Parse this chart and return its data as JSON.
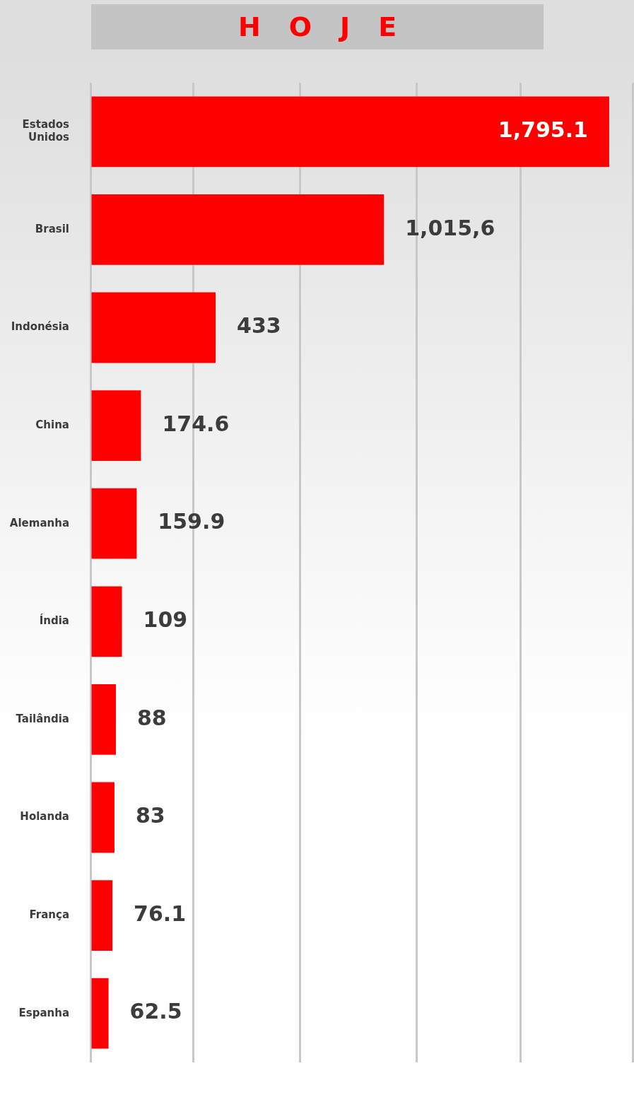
{
  "chart_data": {
    "type": "bar",
    "title": "HOJE",
    "orientation": "horizontal",
    "categories": [
      "Estados Unidos",
      "Brasil",
      "Indonésia",
      "China",
      "Alemanha",
      "Índia",
      "Tailândia",
      "Holanda",
      "França",
      "Espanha"
    ],
    "values": [
      1795.1,
      1015.6,
      433,
      174.6,
      159.9,
      109,
      88,
      83,
      76.1,
      62.5
    ],
    "value_labels": [
      "1,795.1",
      "1,015,6",
      "433",
      "174.6",
      "159.9",
      "109",
      "88",
      "83",
      "76.1",
      "62.5"
    ],
    "color": "#ff0000",
    "xlim": [
      0,
      1876
    ],
    "xticks": [
      {
        "value": 0,
        "label": null
      },
      {
        "value": 355,
        "label": null
      },
      {
        "value": 724,
        "label": null
      },
      {
        "value": 1130,
        "label": null
      },
      {
        "value": 1489,
        "label": null
      },
      {
        "value": 1876,
        "label": null
      }
    ],
    "grid": "x",
    "tick_labels": "y",
    "legend": false
  }
}
